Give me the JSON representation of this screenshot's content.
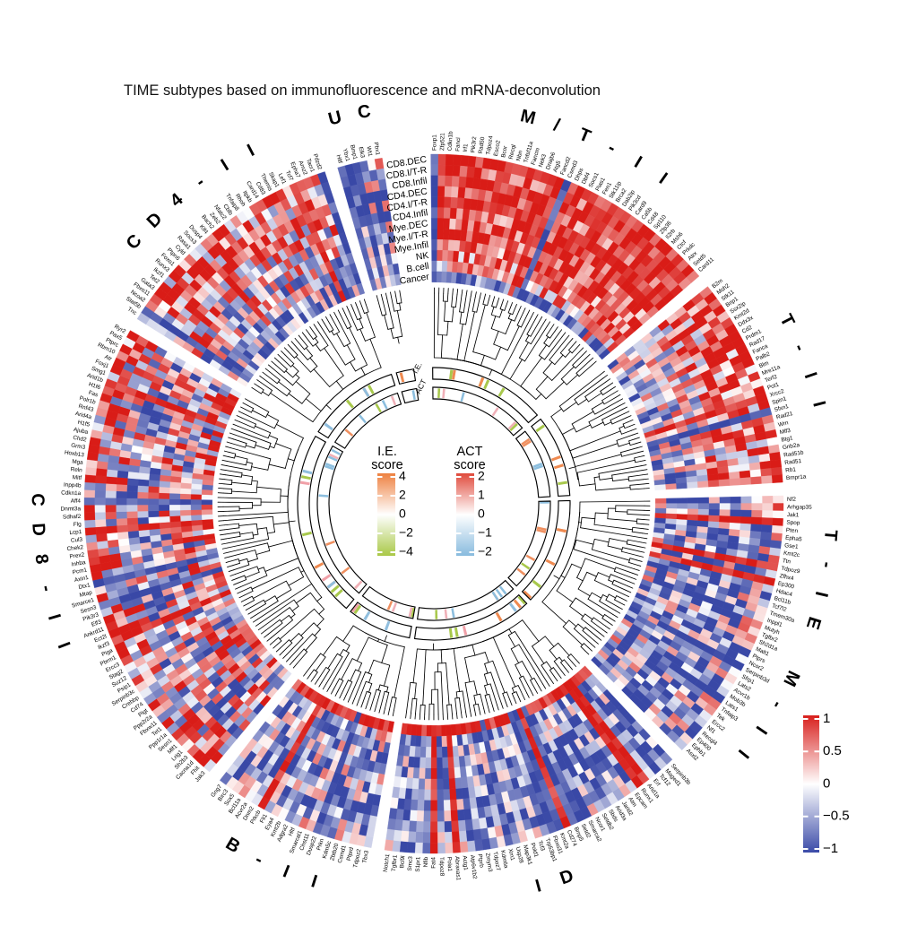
{
  "title": "TIME subtypes based on immunofluorescence and mRNA-deconvolution",
  "rows": [
    "CD8.DEC",
    "CD8.I/T-R",
    "CD8.Infil",
    "CD4.DEC",
    "CD4.I/T-R",
    "CD4.Infil",
    "Mye.DEC",
    "Mye.I/T-R",
    "Mye.Infil",
    "NK",
    "B.cell",
    "Cancer"
  ],
  "inner_ring_labels": [
    "I.E.",
    "ACT"
  ],
  "legends": {
    "ie": {
      "title_line1": "I.E.",
      "title_line2": "score",
      "ticks": [
        4,
        2,
        0,
        -2,
        -4
      ],
      "top_color": "#ee8140",
      "mid_color": "#ffffff",
      "bottom_color": "#a9c847"
    },
    "act": {
      "title_line1": "ACT",
      "title_line2": "score",
      "ticks": [
        2,
        1,
        0,
        -1,
        -2
      ],
      "top_color": "#e04a3c",
      "mid_color": "#ffffff",
      "bottom_color": "#88bbde"
    },
    "main": {
      "ticks": [
        1,
        0.5,
        0,
        -0.5,
        -1
      ],
      "top_color": "#d8201d",
      "mid_color": "#ffffff",
      "bottom_color": "#3b4ba8"
    }
  },
  "palette": {
    "heat_positive": "#d91c17",
    "heat_negative": "#3948a6",
    "heat_zero": "#ffffff",
    "ie_stripes": [
      "#a8c84c",
      "#ef8a50",
      "#f0a0a8",
      "#90bede"
    ],
    "act_stripes": [
      "#8cbede",
      "#ef9060",
      "#f0b0b8",
      "#a8c84c"
    ]
  },
  "chart_data": {
    "type": "heatmap",
    "layout": "circular",
    "value_range": [
      -1,
      1
    ],
    "row_categories": [
      "CD8.DEC",
      "CD8.I/T-R",
      "CD8.Infil",
      "CD4.DEC",
      "CD4.I/T-R",
      "CD4.Infil",
      "Mye.DEC",
      "Mye.I/T-R",
      "Mye.Infil",
      "NK",
      "B.cell",
      "Cancer"
    ],
    "sectors": [
      {
        "name": "M/T-II",
        "genes": [
          "Foxp1",
          "Zfp521",
          "Cdkn1b",
          "Fancl",
          "Irf1",
          "Pik3r2",
          "Rad50",
          "Tdpoz4",
          "Esco2",
          "Bcor",
          "Recql",
          "Nbn",
          "Tnfsf11a",
          "Fancm",
          "Nek3",
          "Dnajb6",
          "Atg5",
          "Fancd2",
          "Csmd3",
          "Dhps",
          "Dbf4",
          "Socs1",
          "Pias1",
          "Fen1",
          "Stk11ip",
          "Brca2",
          "Dab2ip",
          "Pik3cd",
          "Card9",
          "Ca5b",
          "Cd48",
          "Sp110",
          "Zfp36",
          "Il2rb",
          "Msh6",
          "Ctcf",
          "Prkdc",
          "Atrx",
          "Setd5",
          "Card11"
        ],
        "row_bias": [
          0.85,
          0.8,
          0.85,
          0.8,
          0.85,
          0.8,
          0.75,
          0.8,
          0.7,
          0.55,
          0.35,
          -0.75
        ],
        "noise": 0.35
      },
      {
        "name": "T-II",
        "genes": [
          "B2m",
          "Msh2",
          "Stk11",
          "Brip1",
          "Ssx2ip",
          "Kmt2d",
          "Ddx3x",
          "Cd2",
          "Prdm1",
          "Rad17",
          "Fanca",
          "Palb2",
          "Blm",
          "Mre11a",
          "Terf2",
          "Pot1",
          "Xrcc2",
          "Spin1",
          "Sfxn1",
          "Rad21",
          "Wrn",
          "Mlf3",
          "Btg1",
          "Gnb2a",
          "Rad51b",
          "Rad51",
          "Rb1",
          "Bmpr1a"
        ],
        "row_bias": [
          0.7,
          0.65,
          0.6,
          0.55,
          0.5,
          0.45,
          0.2,
          0.0,
          -0.15,
          -0.2,
          -0.3,
          -0.45
        ],
        "noise": 0.5
      },
      {
        "name": "T-IE M-II",
        "genes": [
          "Nf2",
          "Arhgap35",
          "Jak1",
          "Spop",
          "Pten",
          "Epha5",
          "Gse1",
          "Kmt2c",
          "Ttn",
          "Tdpoz9",
          "Zfhx4",
          "Ep300",
          "Hdac4",
          "Bcl11b",
          "Tcf7l2",
          "Tmem30a",
          "Inppl1",
          "Mutyh",
          "Tgfbr2",
          "Sh2d1a",
          "Malt1",
          "Ptprs",
          "Ncor2",
          "Serpinb3d",
          "Sfrp1",
          "Lats2",
          "Acvr1b",
          "Mob3b",
          "Lats1",
          "Tnfaip3",
          "Tek",
          "Ercc2",
          "Nf1",
          "Recql4",
          "Ep400",
          "Ephb1",
          "Asxl2"
        ],
        "row_bias": [
          -0.15,
          -0.35,
          -0.45,
          -0.55,
          -0.55,
          -0.6,
          -0.6,
          -0.55,
          -0.45,
          -0.5,
          -0.55,
          -0.35
        ],
        "noise": 0.55
      },
      {
        "name": "ID",
        "genes": [
          "Serpinb3b",
          "Maged1",
          "Tcf12",
          "Erf",
          "Arid1a",
          "Runx1",
          "Epcam",
          "Atm",
          "Jarid2",
          "Arid3a",
          "Sbds",
          "Setdb2",
          "Ncor1",
          "Smarca2",
          "Setd2",
          "Bmp5",
          "Cd274",
          "Kmt2a",
          "Fbxo31",
          "Trp53bp1",
          "Tcf3",
          "Pold1",
          "Map3k1",
          "Usp28",
          "Xrn1",
          "Kdm6a",
          "Tdpoz7",
          "Zmym3",
          "Ptprb",
          "Atp6v1b2",
          "Actg1",
          "Abraxas1",
          "Pola1",
          "Tdpoz8",
          "Fat4",
          "Nfib",
          "S1pr1",
          "Smc3",
          "Bcl9l",
          "Tgfbr1",
          "Notch1"
        ],
        "row_bias": [
          -0.45,
          -0.5,
          -0.55,
          -0.55,
          -0.6,
          -0.6,
          -0.55,
          -0.6,
          -0.5,
          -0.45,
          -0.5,
          0.9
        ],
        "noise": 0.45
      },
      {
        "name": "B-II",
        "genes": [
          "Tbx3",
          "Tdpoz2",
          "Ptprd",
          "Csmd1",
          "Zbtb20",
          "Kdm5c",
          "Prkn",
          "Dusp22",
          "Chst11",
          "Smarcal1",
          "Hltf",
          "Adgra2",
          "Kmt2b",
          "Eya4",
          "Fli1",
          "Prkcb",
          "Dnm2",
          "Acvr2a",
          "Bcl11a",
          "Sox5",
          "Birc3",
          "Gng7"
        ],
        "row_bias": [
          -0.35,
          -0.45,
          -0.5,
          -0.45,
          -0.5,
          -0.4,
          -0.35,
          -0.4,
          -0.3,
          -0.25,
          -0.3,
          0.9
        ],
        "noise": 0.5
      },
      {
        "name": "CD8-II",
        "genes": [
          "Jak3",
          "Fhit",
          "Cacna1d",
          "Sh2b3",
          "Lrig1",
          "Mlf1",
          "Sesn1",
          "Ppp1r1a",
          "Tet1",
          "Fbxw11",
          "Ppp2r2a",
          "Pigt",
          "Cd74",
          "Crebbp",
          "Serpinb3c",
          "Psip1",
          "Suz12",
          "Stag2",
          "Ercc3",
          "Pbrm1",
          "Piga",
          "Ikzf3",
          "Ect2l",
          "Ankrd11",
          "Elf3",
          "Pik3r3",
          "Sesn3",
          "Smarce1",
          "Mtap",
          "Dtx1",
          "Axin1",
          "Pcm1",
          "Inhba",
          "Prex2",
          "Chek2",
          "Cul3",
          "Lcp1",
          "Flg",
          "Sdhaf2",
          "Dnmt3a",
          "Aff4",
          "Cdkn1a",
          "Inpp4b",
          "Mitf",
          "Reln",
          "Mga",
          "Hoxb13",
          "Grm3",
          "Chd2",
          "Ajuba",
          "H1f5",
          "Arid4a",
          "Rnf43",
          "Polr1b",
          "Fas",
          "H1f6",
          "Arid1b",
          "Smg1",
          "Foxj1",
          "Atr",
          "Rbm10",
          "Ptprc",
          "Pax5",
          "Ryr2"
        ],
        "row_bias": [
          0.45,
          0.35,
          0.25,
          0.05,
          -0.2,
          -0.3,
          -0.25,
          -0.05,
          0.05,
          0.15,
          0.05,
          0.35
        ],
        "noise": 0.6
      },
      {
        "name": "CD4-II",
        "genes": [
          "Tnc",
          "Stat5b",
          "Ncoa2",
          "Fbxo11",
          "Gata3",
          "Tet2",
          "Ikzf1",
          "Runx3",
          "Foxo1",
          "Ptpn6",
          "Cyld",
          "Rasa1",
          "Socs3",
          "Dusp4",
          "Klf4",
          "Bach2",
          "Zeb2",
          "Nfatc2",
          "Cblb",
          "Tnfaip8",
          "Rhoh",
          "Itpkb",
          "Card14",
          "Cd83",
          "Themis",
          "Skap1",
          "Lef1",
          "Tcf7",
          "Epha7",
          "Amz2",
          "Tacr1",
          "Pdzd2"
        ],
        "row_bias": [
          0.55,
          0.5,
          0.45,
          0.5,
          0.35,
          0.25,
          0.1,
          0.0,
          -0.1,
          -0.25,
          -0.45,
          -0.6
        ],
        "noise": 0.55
      },
      {
        "name": "UC",
        "genes": [
          "Hltf",
          "Ybx1",
          "Bmp1",
          "Elk3",
          "Wt1",
          "Pbx1"
        ],
        "row_bias": [
          -0.25,
          -0.35,
          0.05,
          -0.45,
          -0.35,
          -0.25,
          -0.15,
          -0.3,
          -0.2,
          0.0,
          -0.45,
          -0.55
        ],
        "noise": 0.5
      }
    ],
    "inner_rings": [
      {
        "label": "I.E.",
        "scale_ticks": [
          4,
          2,
          0,
          -2,
          -4
        ]
      },
      {
        "label": "ACT",
        "scale_ticks": [
          2,
          1,
          0,
          -1,
          -2
        ]
      }
    ]
  }
}
